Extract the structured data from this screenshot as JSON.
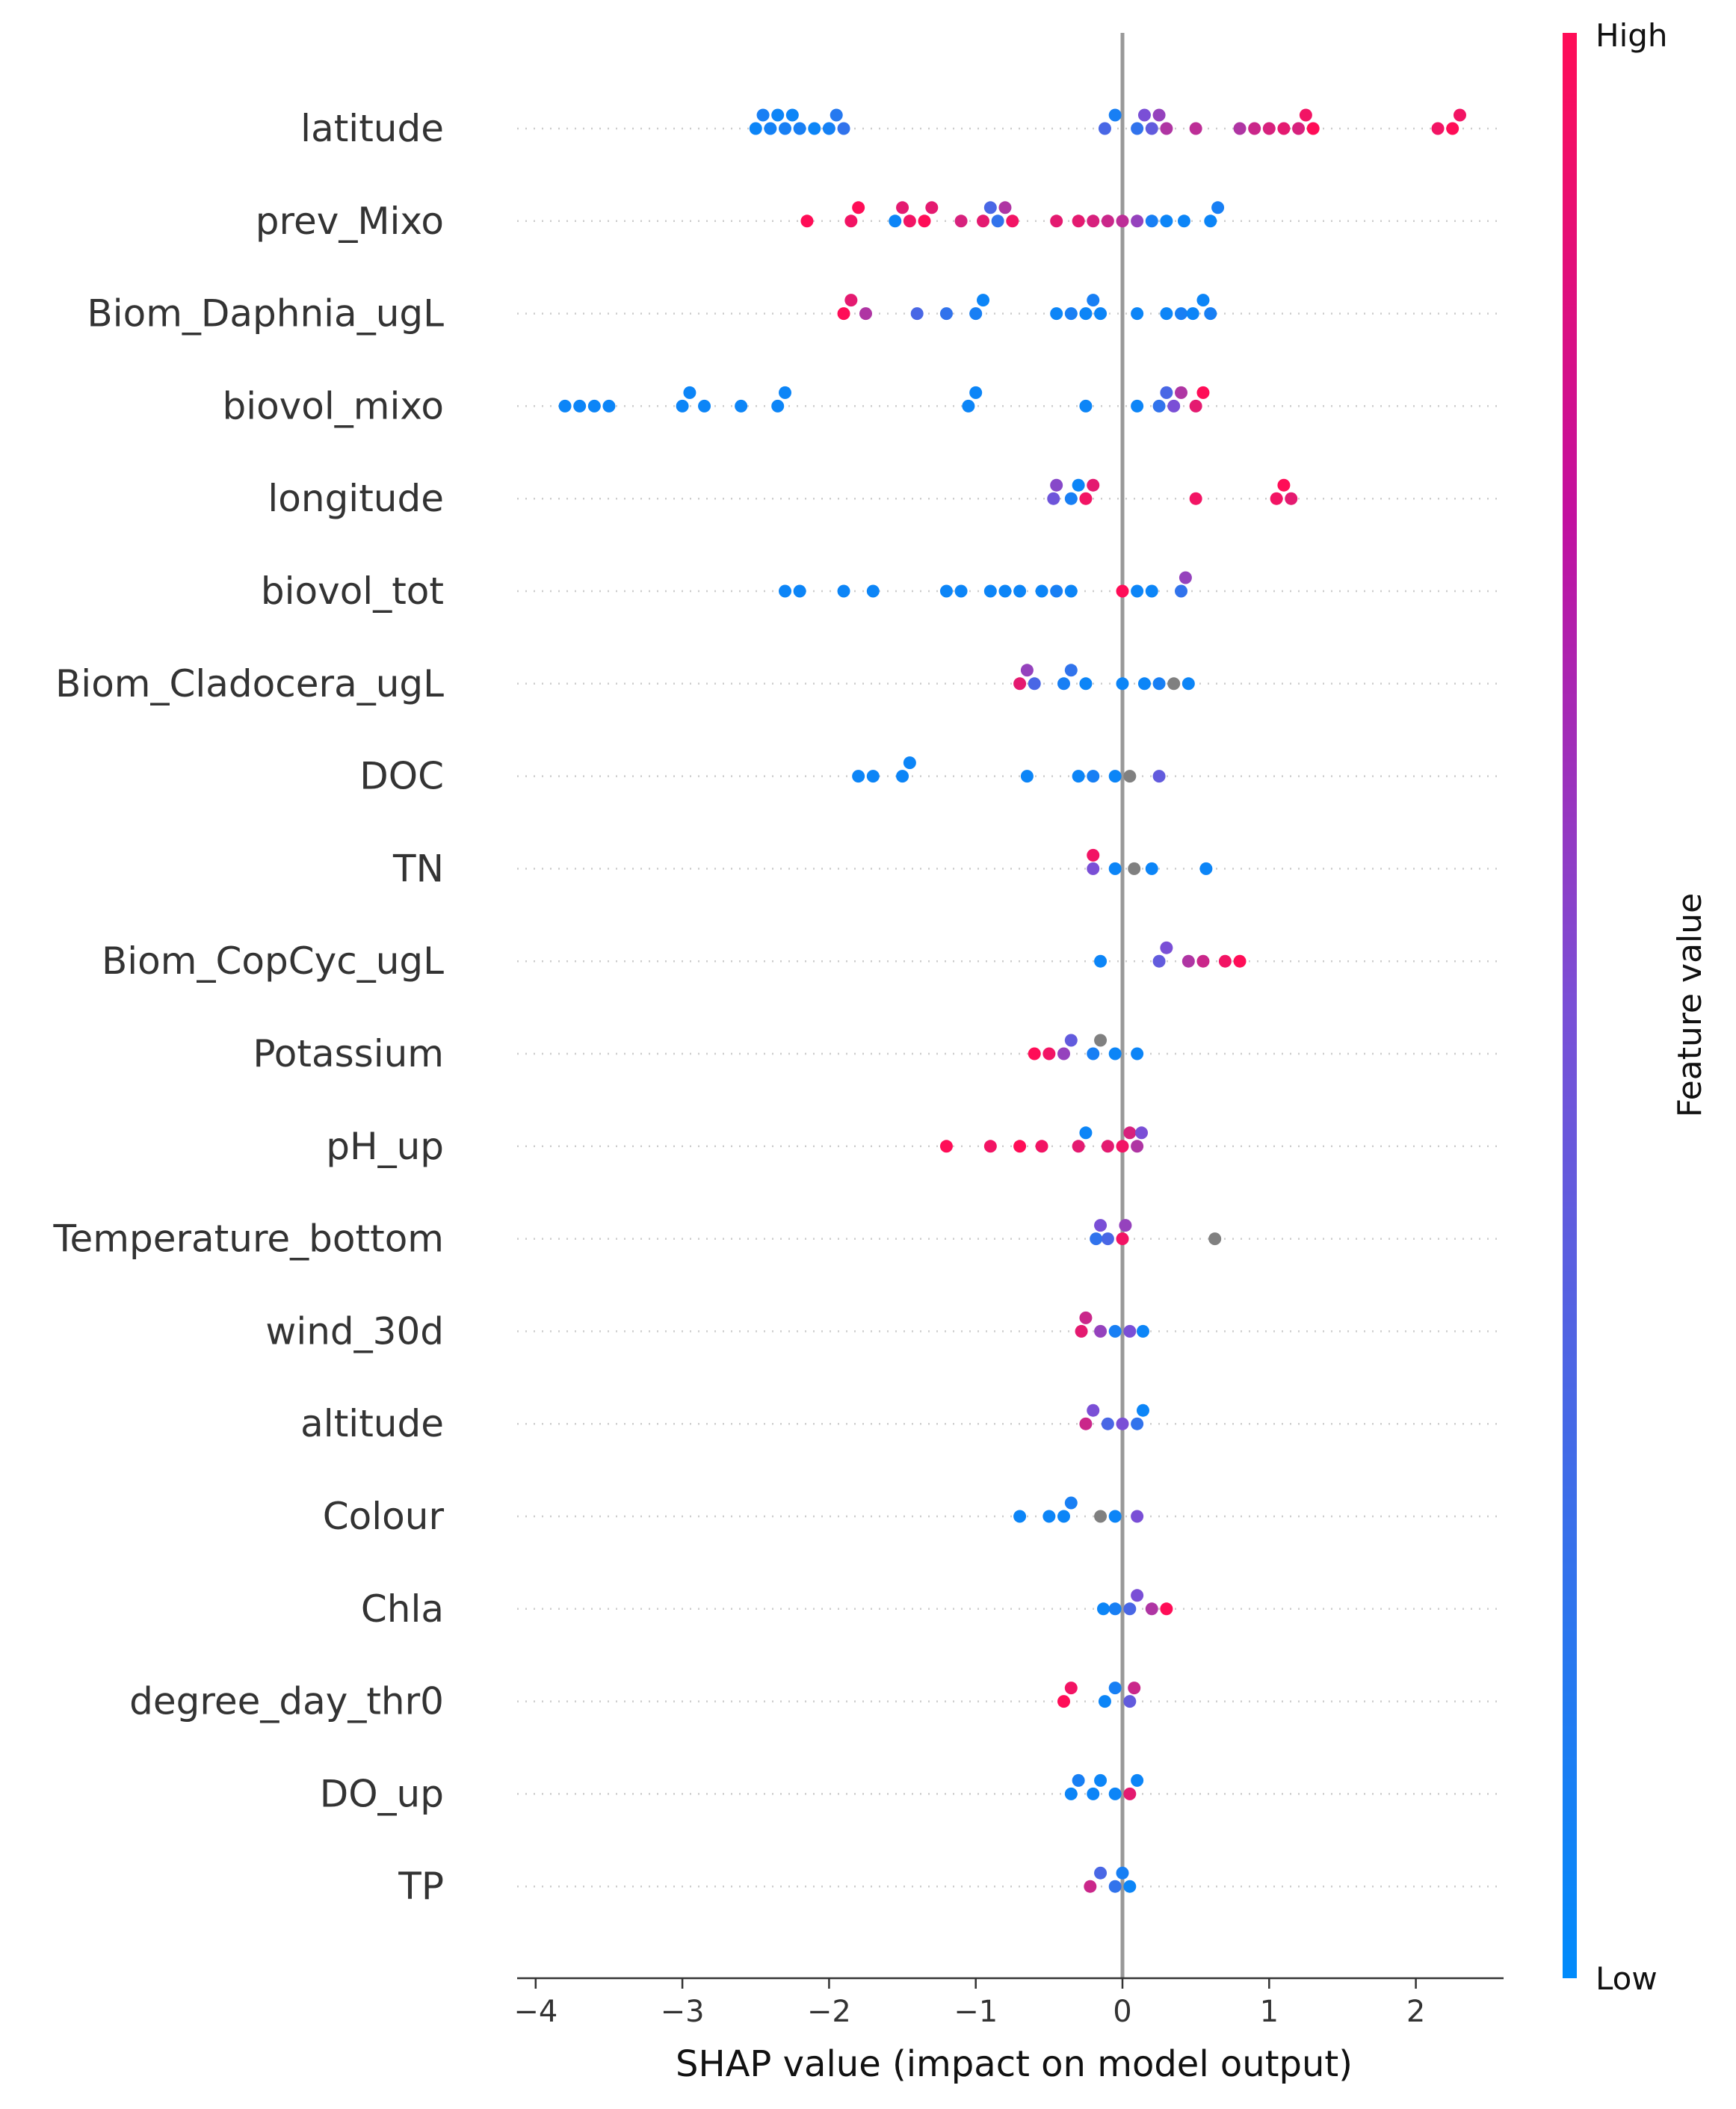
{
  "chart_data": {
    "type": "scatter",
    "subtype": "shap-beeswarm",
    "xlabel": "SHAP value (impact on model output)",
    "xlim": [
      -4.2,
      2.6
    ],
    "xticks": [
      {
        "value": -4,
        "label": "−4"
      },
      {
        "value": -3,
        "label": "−3"
      },
      {
        "value": -2,
        "label": "−2"
      },
      {
        "value": -1,
        "label": "−1"
      },
      {
        "value": 0,
        "label": "0"
      },
      {
        "value": 1,
        "label": "1"
      },
      {
        "value": 2,
        "label": "2"
      }
    ],
    "zero_line": 0,
    "colorbar": {
      "title": "Feature value",
      "high_label": "High",
      "low_label": "Low",
      "high_color": "#ff0d57",
      "low_color": "#008bfb",
      "missing_color": "#808080"
    },
    "features": [
      {
        "name": "latitude",
        "points": [
          {
            "x": -2.5,
            "c": 0.05
          },
          {
            "x": -2.45,
            "c": 0.1
          },
          {
            "x": -2.4,
            "c": 0.08
          },
          {
            "x": -2.35,
            "c": 0.05
          },
          {
            "x": -2.3,
            "c": 0.1
          },
          {
            "x": -2.25,
            "c": 0.05
          },
          {
            "x": -2.2,
            "c": 0.1
          },
          {
            "x": -2.1,
            "c": 0.05
          },
          {
            "x": -2.0,
            "c": 0.08
          },
          {
            "x": -1.95,
            "c": 0.15
          },
          {
            "x": -1.9,
            "c": 0.2
          },
          {
            "x": -0.12,
            "c": 0.3
          },
          {
            "x": -0.05,
            "c": 0.1
          },
          {
            "x": 0.1,
            "c": 0.2
          },
          {
            "x": 0.15,
            "c": 0.5
          },
          {
            "x": 0.2,
            "c": 0.4
          },
          {
            "x": 0.25,
            "c": 0.6
          },
          {
            "x": 0.3,
            "c": 0.7
          },
          {
            "x": 0.5,
            "c": 0.75
          },
          {
            "x": 0.8,
            "c": 0.7
          },
          {
            "x": 0.9,
            "c": 0.8
          },
          {
            "x": 1.0,
            "c": 0.85
          },
          {
            "x": 1.1,
            "c": 0.9
          },
          {
            "x": 1.2,
            "c": 0.85
          },
          {
            "x": 1.25,
            "c": 0.95
          },
          {
            "x": 1.3,
            "c": 1.0
          },
          {
            "x": 2.15,
            "c": 0.95
          },
          {
            "x": 2.25,
            "c": 1.0
          },
          {
            "x": 2.3,
            "c": 0.95
          }
        ]
      },
      {
        "name": "prev_Mixo",
        "points": [
          {
            "x": -2.15,
            "c": 1.0
          },
          {
            "x": -1.85,
            "c": 0.95
          },
          {
            "x": -1.8,
            "c": 1.0
          },
          {
            "x": -1.55,
            "c": 0.05
          },
          {
            "x": -1.5,
            "c": 0.9
          },
          {
            "x": -1.45,
            "c": 0.95
          },
          {
            "x": -1.35,
            "c": 1.0
          },
          {
            "x": -1.3,
            "c": 0.9
          },
          {
            "x": -1.1,
            "c": 0.85
          },
          {
            "x": -0.95,
            "c": 0.9
          },
          {
            "x": -0.9,
            "c": 0.3
          },
          {
            "x": -0.85,
            "c": 0.2
          },
          {
            "x": -0.8,
            "c": 0.7
          },
          {
            "x": -0.75,
            "c": 0.95
          },
          {
            "x": -0.45,
            "c": 0.9
          },
          {
            "x": -0.3,
            "c": 0.9
          },
          {
            "x": -0.2,
            "c": 0.85
          },
          {
            "x": -0.1,
            "c": 0.8
          },
          {
            "x": 0.0,
            "c": 0.75
          },
          {
            "x": 0.1,
            "c": 0.6
          },
          {
            "x": 0.2,
            "c": 0.1
          },
          {
            "x": 0.3,
            "c": 0.05
          },
          {
            "x": 0.42,
            "c": 0.05
          },
          {
            "x": 0.6,
            "c": 0.05
          },
          {
            "x": 0.65,
            "c": 0.1
          }
        ]
      },
      {
        "name": "Biom_Daphnia_ugL",
        "points": [
          {
            "x": -1.9,
            "c": 1.0
          },
          {
            "x": -1.85,
            "c": 0.9
          },
          {
            "x": -1.75,
            "c": 0.7
          },
          {
            "x": -1.4,
            "c": 0.3
          },
          {
            "x": -1.2,
            "c": 0.2
          },
          {
            "x": -1.0,
            "c": 0.1
          },
          {
            "x": -0.95,
            "c": 0.05
          },
          {
            "x": -0.45,
            "c": 0.05
          },
          {
            "x": -0.35,
            "c": 0.1
          },
          {
            "x": -0.25,
            "c": 0.05
          },
          {
            "x": -0.2,
            "c": 0.1
          },
          {
            "x": -0.15,
            "c": 0.05
          },
          {
            "x": 0.1,
            "c": 0.05
          },
          {
            "x": 0.3,
            "c": 0.05
          },
          {
            "x": 0.4,
            "c": 0.1
          },
          {
            "x": 0.48,
            "c": 0.05
          },
          {
            "x": 0.55,
            "c": 0.05
          },
          {
            "x": 0.6,
            "c": 0.1
          }
        ]
      },
      {
        "name": "biovol_mixo",
        "points": [
          {
            "x": -3.8,
            "c": 0.05
          },
          {
            "x": -3.7,
            "c": 0.05
          },
          {
            "x": -3.6,
            "c": 0.05
          },
          {
            "x": -3.5,
            "c": 0.05
          },
          {
            "x": -3.0,
            "c": 0.05
          },
          {
            "x": -2.95,
            "c": 0.05
          },
          {
            "x": -2.85,
            "c": 0.05
          },
          {
            "x": -2.6,
            "c": 0.05
          },
          {
            "x": -2.35,
            "c": 0.05
          },
          {
            "x": -2.3,
            "c": 0.05
          },
          {
            "x": -1.05,
            "c": 0.05
          },
          {
            "x": -1.0,
            "c": 0.05
          },
          {
            "x": -0.25,
            "c": 0.05
          },
          {
            "x": 0.1,
            "c": 0.05
          },
          {
            "x": 0.25,
            "c": 0.2
          },
          {
            "x": 0.3,
            "c": 0.3
          },
          {
            "x": 0.35,
            "c": 0.5
          },
          {
            "x": 0.4,
            "c": 0.7
          },
          {
            "x": 0.5,
            "c": 0.9
          },
          {
            "x": 0.55,
            "c": 1.0
          }
        ]
      },
      {
        "name": "longitude",
        "points": [
          {
            "x": -0.47,
            "c": 0.45
          },
          {
            "x": -0.45,
            "c": 0.55
          },
          {
            "x": -0.35,
            "c": 0.1
          },
          {
            "x": -0.3,
            "c": 0.05
          },
          {
            "x": -0.25,
            "c": 0.95
          },
          {
            "x": -0.2,
            "c": 0.9
          },
          {
            "x": 0.5,
            "c": 0.95
          },
          {
            "x": 1.05,
            "c": 0.95
          },
          {
            "x": 1.1,
            "c": 1.0
          },
          {
            "x": 1.15,
            "c": 0.9
          }
        ]
      },
      {
        "name": "biovol_tot",
        "points": [
          {
            "x": -2.3,
            "c": 0.05
          },
          {
            "x": -2.2,
            "c": 0.05
          },
          {
            "x": -1.9,
            "c": 0.05
          },
          {
            "x": -1.7,
            "c": 0.05
          },
          {
            "x": -1.2,
            "c": 0.05
          },
          {
            "x": -1.1,
            "c": 0.05
          },
          {
            "x": -0.9,
            "c": 0.05
          },
          {
            "x": -0.8,
            "c": 0.05
          },
          {
            "x": -0.7,
            "c": 0.05
          },
          {
            "x": -0.55,
            "c": 0.05
          },
          {
            "x": -0.45,
            "c": 0.1
          },
          {
            "x": -0.35,
            "c": 0.05
          },
          {
            "x": 0.0,
            "c": 1.0
          },
          {
            "x": 0.1,
            "c": 0.05
          },
          {
            "x": 0.2,
            "c": 0.05
          },
          {
            "x": 0.4,
            "c": 0.2
          },
          {
            "x": 0.43,
            "c": 0.6
          }
        ]
      },
      {
        "name": "Biom_Cladocera_ugL",
        "points": [
          {
            "x": -0.7,
            "c": 0.9
          },
          {
            "x": -0.65,
            "c": 0.6
          },
          {
            "x": -0.6,
            "c": 0.3
          },
          {
            "x": -0.4,
            "c": 0.1
          },
          {
            "x": -0.35,
            "c": 0.2
          },
          {
            "x": -0.25,
            "c": 0.05
          },
          {
            "x": 0.0,
            "c": 0.05
          },
          {
            "x": 0.15,
            "c": 0.05
          },
          {
            "x": 0.25,
            "c": 0.1
          },
          {
            "x": 0.35,
            "c": -1
          },
          {
            "x": 0.45,
            "c": 0.05
          }
        ]
      },
      {
        "name": "DOC",
        "points": [
          {
            "x": -1.8,
            "c": 0.05
          },
          {
            "x": -1.7,
            "c": 0.05
          },
          {
            "x": -1.5,
            "c": 0.05
          },
          {
            "x": -1.45,
            "c": 0.05
          },
          {
            "x": -0.65,
            "c": 0.05
          },
          {
            "x": -0.3,
            "c": 0.05
          },
          {
            "x": -0.2,
            "c": 0.1
          },
          {
            "x": -0.05,
            "c": 0.05
          },
          {
            "x": 0.05,
            "c": -1
          },
          {
            "x": 0.25,
            "c": 0.4
          }
        ]
      },
      {
        "name": "TN",
        "points": [
          {
            "x": -0.2,
            "c": 0.5
          },
          {
            "x": -0.2,
            "c": 0.95
          },
          {
            "x": -0.05,
            "c": 0.05
          },
          {
            "x": 0.08,
            "c": -1
          },
          {
            "x": 0.2,
            "c": 0.05
          },
          {
            "x": 0.57,
            "c": 0.05
          }
        ]
      },
      {
        "name": "Biom_CopCyc_ugL",
        "points": [
          {
            "x": -0.15,
            "c": 0.05
          },
          {
            "x": 0.25,
            "c": 0.4
          },
          {
            "x": 0.3,
            "c": 0.5
          },
          {
            "x": 0.45,
            "c": 0.7
          },
          {
            "x": 0.55,
            "c": 0.8
          },
          {
            "x": 0.7,
            "c": 0.95
          },
          {
            "x": 0.8,
            "c": 1.0
          }
        ]
      },
      {
        "name": "Potassium",
        "points": [
          {
            "x": -0.6,
            "c": 1.0
          },
          {
            "x": -0.5,
            "c": 0.95
          },
          {
            "x": -0.4,
            "c": 0.6
          },
          {
            "x": -0.35,
            "c": 0.4
          },
          {
            "x": -0.2,
            "c": 0.1
          },
          {
            "x": -0.15,
            "c": -1
          },
          {
            "x": -0.05,
            "c": 0.05
          },
          {
            "x": 0.1,
            "c": 0.05
          }
        ]
      },
      {
        "name": "pH_up",
        "points": [
          {
            "x": -1.2,
            "c": 1.0
          },
          {
            "x": -0.9,
            "c": 0.95
          },
          {
            "x": -0.7,
            "c": 1.0
          },
          {
            "x": -0.55,
            "c": 0.95
          },
          {
            "x": -0.3,
            "c": 0.9
          },
          {
            "x": -0.25,
            "c": 0.05
          },
          {
            "x": -0.1,
            "c": 0.9
          },
          {
            "x": 0.0,
            "c": 0.95
          },
          {
            "x": 0.05,
            "c": 0.85
          },
          {
            "x": 0.1,
            "c": 0.7
          },
          {
            "x": 0.13,
            "c": 0.5
          }
        ]
      },
      {
        "name": "Temperature_bottom",
        "points": [
          {
            "x": -0.18,
            "c": 0.2
          },
          {
            "x": -0.15,
            "c": 0.5
          },
          {
            "x": -0.1,
            "c": 0.3
          },
          {
            "x": 0.0,
            "c": 0.95
          },
          {
            "x": 0.02,
            "c": 0.6
          },
          {
            "x": 0.63,
            "c": -1
          }
        ]
      },
      {
        "name": "wind_30d",
        "points": [
          {
            "x": -0.28,
            "c": 0.9
          },
          {
            "x": -0.25,
            "c": 0.8
          },
          {
            "x": -0.15,
            "c": 0.6
          },
          {
            "x": -0.05,
            "c": 0.1
          },
          {
            "x": 0.05,
            "c": 0.5
          },
          {
            "x": 0.14,
            "c": 0.05
          }
        ]
      },
      {
        "name": "altitude",
        "points": [
          {
            "x": -0.25,
            "c": 0.8
          },
          {
            "x": -0.2,
            "c": 0.5
          },
          {
            "x": -0.1,
            "c": 0.3
          },
          {
            "x": 0.0,
            "c": 0.5
          },
          {
            "x": 0.1,
            "c": 0.2
          },
          {
            "x": 0.14,
            "c": 0.05
          }
        ]
      },
      {
        "name": "Colour",
        "points": [
          {
            "x": -0.7,
            "c": 0.05
          },
          {
            "x": -0.5,
            "c": 0.05
          },
          {
            "x": -0.4,
            "c": 0.05
          },
          {
            "x": -0.35,
            "c": 0.1
          },
          {
            "x": -0.15,
            "c": -1
          },
          {
            "x": -0.05,
            "c": 0.05
          },
          {
            "x": 0.1,
            "c": 0.5
          }
        ]
      },
      {
        "name": "Chla",
        "points": [
          {
            "x": -0.13,
            "c": 0.05
          },
          {
            "x": -0.05,
            "c": 0.1
          },
          {
            "x": 0.05,
            "c": 0.3
          },
          {
            "x": 0.1,
            "c": 0.5
          },
          {
            "x": 0.2,
            "c": 0.7
          },
          {
            "x": 0.3,
            "c": 1.0
          }
        ]
      },
      {
        "name": "degree_day_thr0",
        "points": [
          {
            "x": -0.4,
            "c": 1.0
          },
          {
            "x": -0.35,
            "c": 0.95
          },
          {
            "x": -0.12,
            "c": 0.05
          },
          {
            "x": -0.05,
            "c": 0.1
          },
          {
            "x": 0.05,
            "c": 0.4
          },
          {
            "x": 0.08,
            "c": 0.8
          }
        ]
      },
      {
        "name": "DO_up",
        "points": [
          {
            "x": -0.35,
            "c": 0.05
          },
          {
            "x": -0.3,
            "c": 0.1
          },
          {
            "x": -0.2,
            "c": 0.05
          },
          {
            "x": -0.15,
            "c": 0.05
          },
          {
            "x": -0.05,
            "c": 0.05
          },
          {
            "x": 0.05,
            "c": 0.9
          },
          {
            "x": 0.1,
            "c": 0.05
          }
        ]
      },
      {
        "name": "TP",
        "points": [
          {
            "x": -0.22,
            "c": 0.8
          },
          {
            "x": -0.15,
            "c": 0.3
          },
          {
            "x": -0.05,
            "c": 0.2
          },
          {
            "x": 0.0,
            "c": 0.1
          },
          {
            "x": 0.05,
            "c": 0.05
          }
        ]
      }
    ]
  }
}
